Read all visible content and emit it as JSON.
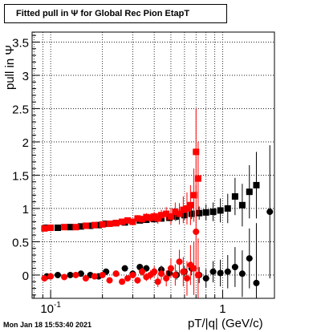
{
  "title": "Fitted pull in  Ψ  for Global Rec Pion EtapT",
  "timestamp": "Mon Jan 18 15:53:40 2021",
  "chart_data": {
    "type": "scatter",
    "title": "Fitted pull in  Ψ  for Global Rec Pion EtapT",
    "xlabel": "pT/|q| (GeV/c)",
    "ylabel": "pull in Ψ",
    "x_scale": "log",
    "xlim": [
      0.078,
      2.0
    ],
    "ylim": [
      -0.35,
      3.65
    ],
    "grid": true,
    "x_tick_labels": [
      {
        "v": 0.1,
        "label": "10^-1"
      },
      {
        "v": 1,
        "label": "1"
      }
    ],
    "y_ticks": [
      0,
      0.5,
      1,
      1.5,
      2,
      2.5,
      3,
      3.5
    ],
    "y_tick_labels": [
      "0",
      "0.5",
      "1",
      "1.5",
      "2",
      "2.5",
      "3",
      "3.5"
    ],
    "series": [
      {
        "color": "#000000",
        "marker": "square",
        "x": [
          0.095,
          0.11,
          0.13,
          0.15,
          0.17,
          0.19,
          0.21,
          0.24,
          0.27,
          0.3,
          0.33,
          0.36,
          0.4,
          0.44,
          0.49,
          0.54,
          0.6,
          0.66,
          0.73,
          0.8,
          0.88,
          0.97,
          1.07,
          1.18,
          1.3,
          1.43,
          1.57
        ],
        "y": [
          0.71,
          0.71,
          0.72,
          0.73,
          0.74,
          0.75,
          0.77,
          0.78,
          0.79,
          0.8,
          0.82,
          0.83,
          0.84,
          0.85,
          0.86,
          0.88,
          0.9,
          0.92,
          0.93,
          0.94,
          0.95,
          0.97,
          1.0,
          1.18,
          1.05,
          1.25,
          1.35
        ],
        "err": [
          0.02,
          0.02,
          0.02,
          0.02,
          0.02,
          0.02,
          0.02,
          0.02,
          0.03,
          0.03,
          0.03,
          0.04,
          0.04,
          0.05,
          0.05,
          0.06,
          0.07,
          0.08,
          0.1,
          0.12,
          0.14,
          0.18,
          0.22,
          0.28,
          0.32,
          0.4,
          0.5
        ]
      },
      {
        "color": "#000000",
        "marker": "circle",
        "x": [
          0.095,
          0.11,
          0.13,
          0.15,
          0.17,
          0.19,
          0.21,
          0.24,
          0.27,
          0.3,
          0.33,
          0.36,
          0.4,
          0.44,
          0.49,
          0.54,
          0.6,
          0.66,
          0.73,
          0.8,
          0.88,
          0.97,
          1.07,
          1.18,
          1.3,
          1.43,
          1.57,
          1.88
        ],
        "y": [
          -0.02,
          0.0,
          0.0,
          0.02,
          0.0,
          -0.02,
          0.05,
          0.02,
          0.1,
          0.02,
          0.12,
          0.1,
          0.05,
          0.08,
          0.03,
          0.0,
          0.05,
          0.1,
          0.0,
          -0.05,
          0.05,
          0.03,
          0.05,
          0.12,
          0.02,
          0.25,
          -0.12,
          0.95
        ],
        "err": [
          0.02,
          0.02,
          0.02,
          0.02,
          0.02,
          0.03,
          0.03,
          0.03,
          0.04,
          0.04,
          0.04,
          0.05,
          0.05,
          0.06,
          0.06,
          0.07,
          0.08,
          0.1,
          0.12,
          0.14,
          0.16,
          0.2,
          0.25,
          0.3,
          0.35,
          0.45,
          0.9,
          1.0
        ]
      },
      {
        "color": "#ff0000",
        "marker": "square",
        "x": [
          0.092,
          0.1,
          0.12,
          0.14,
          0.16,
          0.18,
          0.2,
          0.22,
          0.24,
          0.26,
          0.28,
          0.3,
          0.32,
          0.34,
          0.36,
          0.38,
          0.4,
          0.42,
          0.44,
          0.47,
          0.5,
          0.53,
          0.56,
          0.59,
          0.62,
          0.65,
          0.68,
          0.7,
          0.72
        ],
        "y": [
          0.7,
          0.71,
          0.72,
          0.72,
          0.74,
          0.75,
          0.76,
          0.77,
          0.78,
          0.8,
          0.82,
          0.8,
          0.85,
          0.84,
          0.87,
          0.86,
          0.88,
          0.85,
          0.9,
          0.92,
          0.88,
          0.95,
          0.92,
          0.98,
          1.0,
          1.05,
          1.2,
          1.85,
          1.45
        ],
        "err": [
          0.02,
          0.02,
          0.02,
          0.02,
          0.02,
          0.02,
          0.02,
          0.03,
          0.03,
          0.03,
          0.04,
          0.04,
          0.05,
          0.05,
          0.06,
          0.06,
          0.07,
          0.08,
          0.08,
          0.1,
          0.12,
          0.14,
          0.16,
          0.2,
          0.24,
          0.3,
          0.4,
          0.65,
          0.55
        ]
      },
      {
        "color": "#ff0000",
        "marker": "circle",
        "x": [
          0.092,
          0.1,
          0.12,
          0.14,
          0.16,
          0.18,
          0.2,
          0.22,
          0.24,
          0.26,
          0.28,
          0.3,
          0.32,
          0.34,
          0.36,
          0.38,
          0.4,
          0.42,
          0.44,
          0.47,
          0.5,
          0.53,
          0.56,
          0.59,
          0.62,
          0.65,
          0.68,
          0.7,
          0.72
        ],
        "y": [
          -0.05,
          -0.02,
          -0.03,
          0.0,
          -0.05,
          -0.02,
          0.0,
          -0.08,
          0.02,
          -0.1,
          -0.05,
          0.0,
          -0.08,
          0.05,
          -0.03,
          0.0,
          0.05,
          -0.1,
          0.02,
          -0.05,
          0.1,
          0.0,
          0.2,
          0.05,
          -0.05,
          0.15,
          0.1,
          0.65,
          0.0
        ],
        "err": [
          0.02,
          0.02,
          0.02,
          0.02,
          0.02,
          0.03,
          0.03,
          0.03,
          0.04,
          0.04,
          0.04,
          0.05,
          0.05,
          0.06,
          0.06,
          0.07,
          0.08,
          0.08,
          0.1,
          0.12,
          0.14,
          0.16,
          0.18,
          0.22,
          0.26,
          0.3,
          0.4,
          0.7,
          0.55
        ]
      }
    ]
  }
}
